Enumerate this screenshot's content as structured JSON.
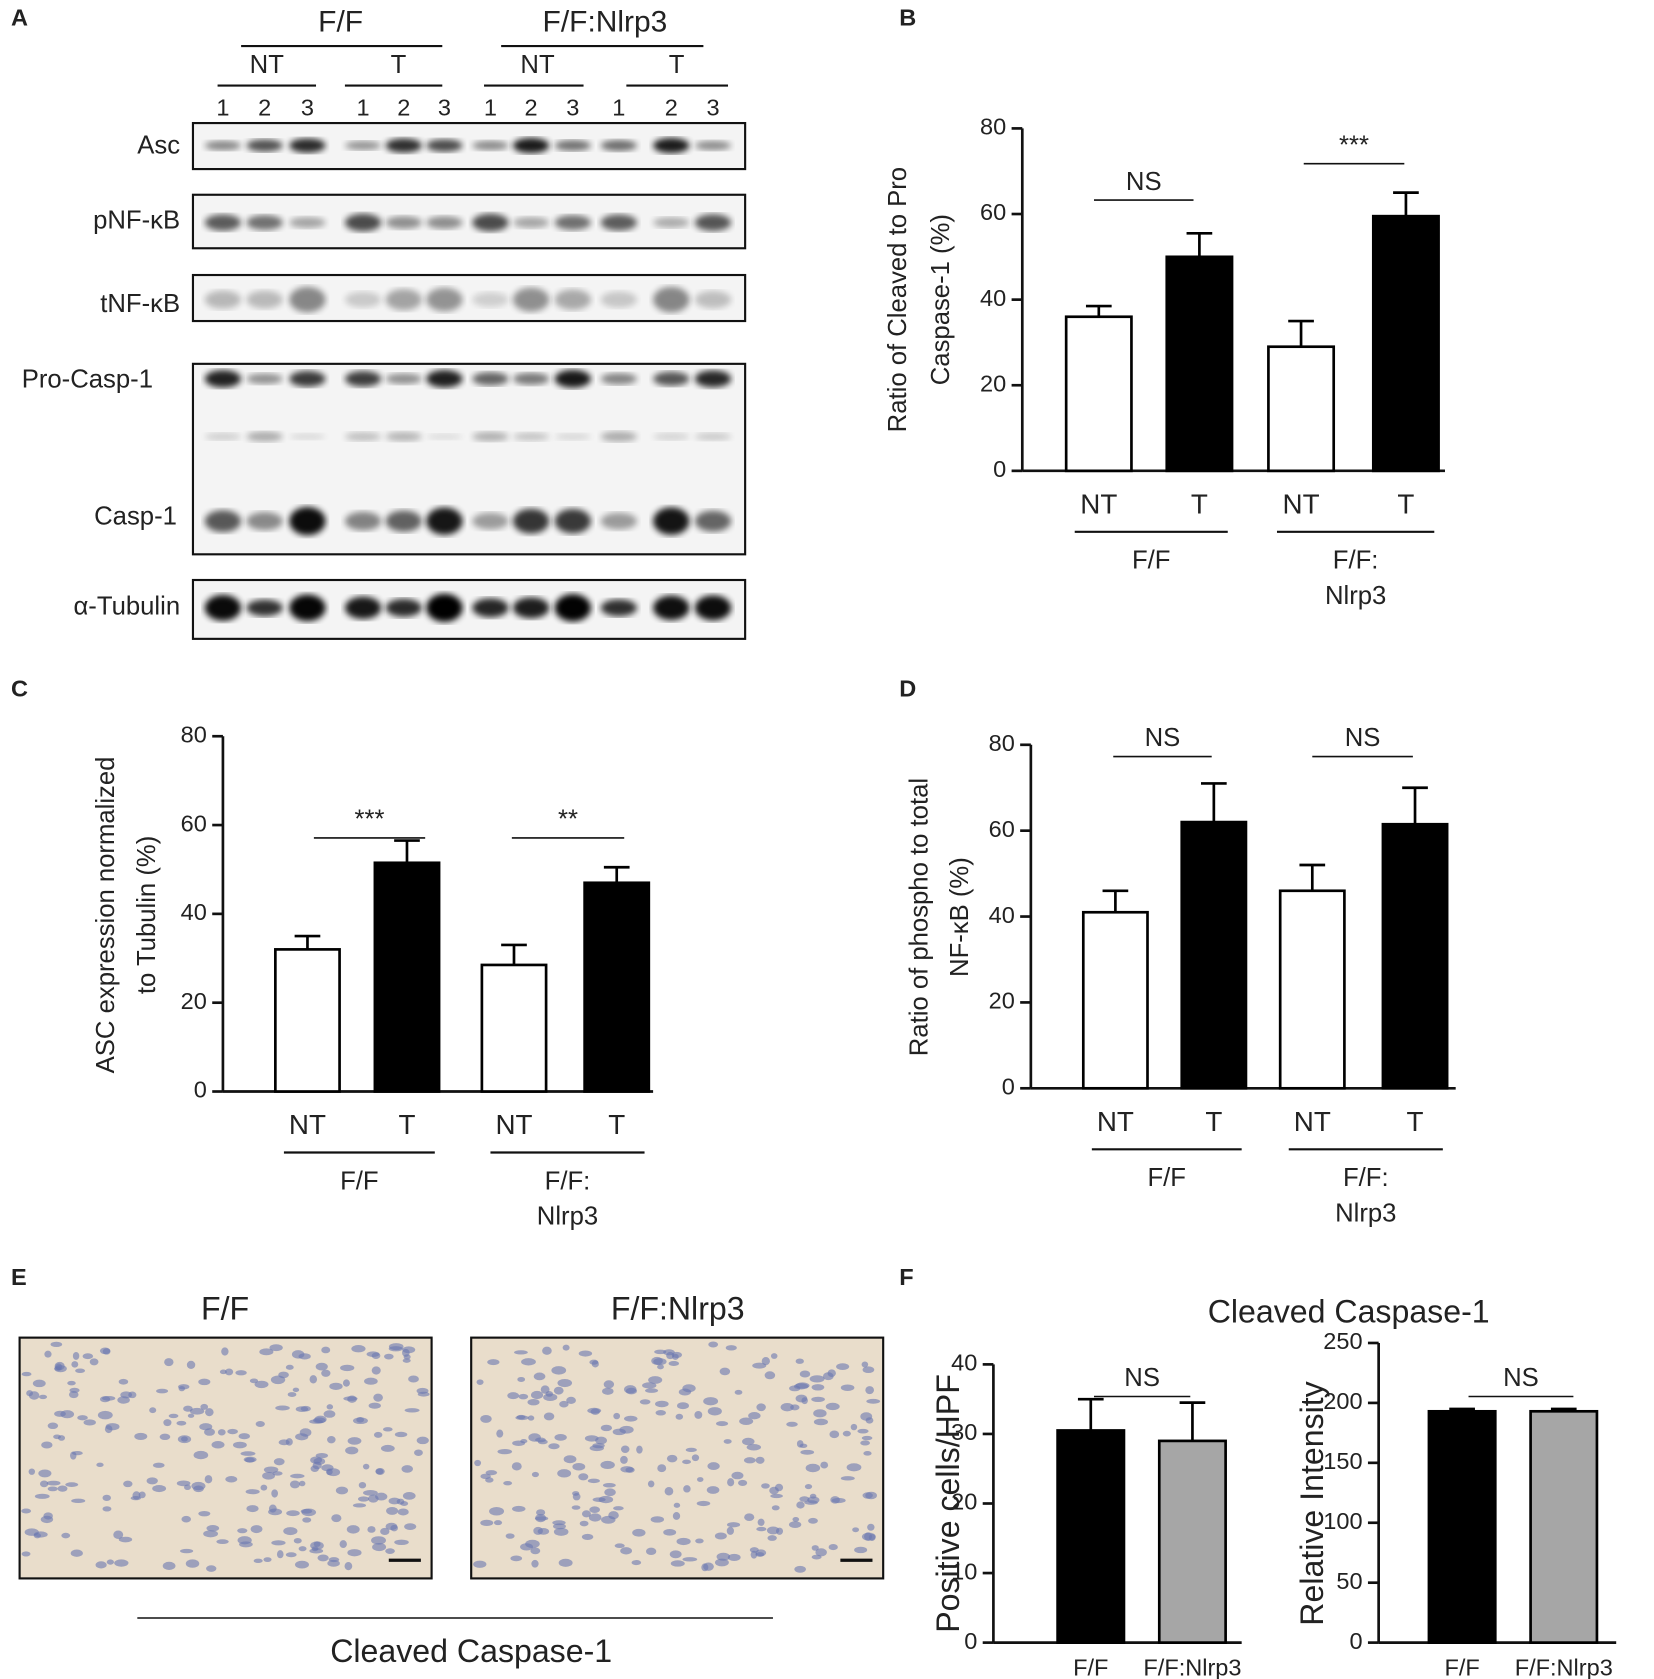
{
  "panel_labels": [
    "A",
    "B",
    "C",
    "D",
    "E",
    "F"
  ],
  "blot": {
    "groups": [
      "F/F",
      "F/F:Nlrp3"
    ],
    "treatments": [
      "NT",
      "T",
      "NT",
      "T"
    ],
    "lanes": [
      "1",
      "2",
      "3",
      "1",
      "2",
      "3",
      "1",
      "2",
      "3",
      "1",
      "2",
      "3"
    ],
    "rows": [
      "Asc",
      "pNF-κB",
      "tNF-κB",
      "Pro-Casp-1",
      "Casp-1",
      "α-Tubulin"
    ]
  },
  "histology": {
    "titles": [
      "F/F",
      "F/F:Nlrp3"
    ],
    "caption": "Cleaved Caspase-1"
  },
  "chart_data": [
    {
      "type": "bar",
      "ylabel": [
        "Ratio of Cleaved  to Pro",
        "Caspase-1  (%)"
      ],
      "categories": [
        "NT",
        "T",
        "NT",
        "T"
      ],
      "values": [
        36,
        50,
        29,
        59.5
      ],
      "errors": [
        2.5,
        5.5,
        6,
        5.5
      ],
      "colors": [
        "#ffffff",
        "#000000",
        "#ffffff",
        "#000000"
      ],
      "groups": [
        [
          "F/F"
        ],
        [
          "F/F:",
          "Nlrp3"
        ]
      ],
      "significance": [
        "NS",
        "***"
      ],
      "ylim": [
        0,
        80
      ],
      "yticks": [
        0,
        20,
        40,
        60,
        80
      ]
    },
    {
      "type": "bar",
      "ylabel": [
        "ASC expression normalized",
        "to Tubulin  (%)"
      ],
      "categories": [
        "NT",
        "T",
        "NT",
        "T"
      ],
      "values": [
        32,
        51.5,
        28.5,
        47
      ],
      "errors": [
        3,
        5,
        4.5,
        3.5
      ],
      "colors": [
        "#ffffff",
        "#000000",
        "#ffffff",
        "#000000"
      ],
      "groups": [
        [
          "F/F"
        ],
        [
          "F/F:",
          "Nlrp3"
        ]
      ],
      "significance": [
        "***",
        "**"
      ],
      "ylim": [
        0,
        80
      ],
      "yticks": [
        0,
        20,
        40,
        60,
        80
      ]
    },
    {
      "type": "bar",
      "ylabel": [
        "Ratio of phospho to total",
        "NF-κB (%)"
      ],
      "categories": [
        "NT",
        "T",
        "NT",
        "T"
      ],
      "values": [
        41,
        62,
        46,
        61.5
      ],
      "errors": [
        5,
        9,
        6,
        8.5
      ],
      "colors": [
        "#ffffff",
        "#000000",
        "#ffffff",
        "#000000"
      ],
      "groups": [
        [
          "F/F"
        ],
        [
          "F/F:",
          "Nlrp3"
        ]
      ],
      "significance": [
        "NS",
        "NS"
      ],
      "ylim": [
        0,
        80
      ],
      "yticks": [
        0,
        20,
        40,
        60,
        80
      ]
    },
    {
      "type": "bar",
      "title": "Cleaved Caspase-1",
      "ylabel": [
        "Positive cells/HPF"
      ],
      "categories": [
        "F/F",
        "F/F:Nlrp3"
      ],
      "values": [
        30.5,
        29
      ],
      "errors": [
        4.5,
        5.5
      ],
      "colors": [
        "#000000",
        "#a6a6a6"
      ],
      "significance": [
        "NS"
      ],
      "ylim": [
        0,
        40
      ],
      "yticks": [
        0,
        10,
        20,
        30,
        40
      ]
    },
    {
      "type": "bar",
      "ylabel": [
        "Relative Intensity"
      ],
      "categories": [
        "F/F",
        "F/F:Nlrp3"
      ],
      "values": [
        193,
        193
      ],
      "errors": [
        2,
        2
      ],
      "colors": [
        "#000000",
        "#a6a6a6"
      ],
      "significance": [
        "NS"
      ],
      "ylim": [
        0,
        250
      ],
      "yticks": [
        0,
        50,
        100,
        150,
        200,
        250
      ]
    }
  ]
}
